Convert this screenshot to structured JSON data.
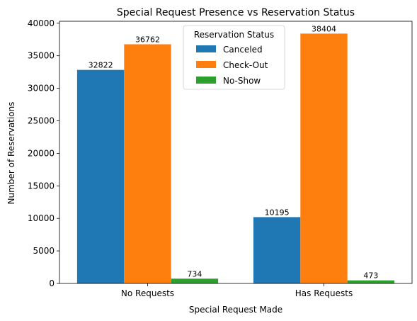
{
  "chart_data": {
    "type": "bar",
    "title": "Special Request Presence vs Reservation Status",
    "xlabel": "Special Request Made",
    "ylabel": "Number of Reservations",
    "categories": [
      "No Requests",
      "Has Requests"
    ],
    "series": [
      {
        "name": "Canceled",
        "color": "#1f77b4",
        "values": [
          32822,
          10195
        ]
      },
      {
        "name": "Check-Out",
        "color": "#ff7f0e",
        "values": [
          36762,
          38404
        ]
      },
      {
        "name": "No-Show",
        "color": "#2ca02c",
        "values": [
          734,
          473
        ]
      }
    ],
    "data_labels": [
      [
        "32822",
        "10195"
      ],
      [
        "36762",
        "38404"
      ],
      [
        "734",
        "473"
      ]
    ],
    "ylim": [
      0,
      40300
    ],
    "yticks": [
      0,
      5000,
      10000,
      15000,
      20000,
      25000,
      30000,
      35000,
      40000
    ],
    "legend": {
      "title": "Reservation Status",
      "position": "top-center"
    },
    "grid": false
  }
}
